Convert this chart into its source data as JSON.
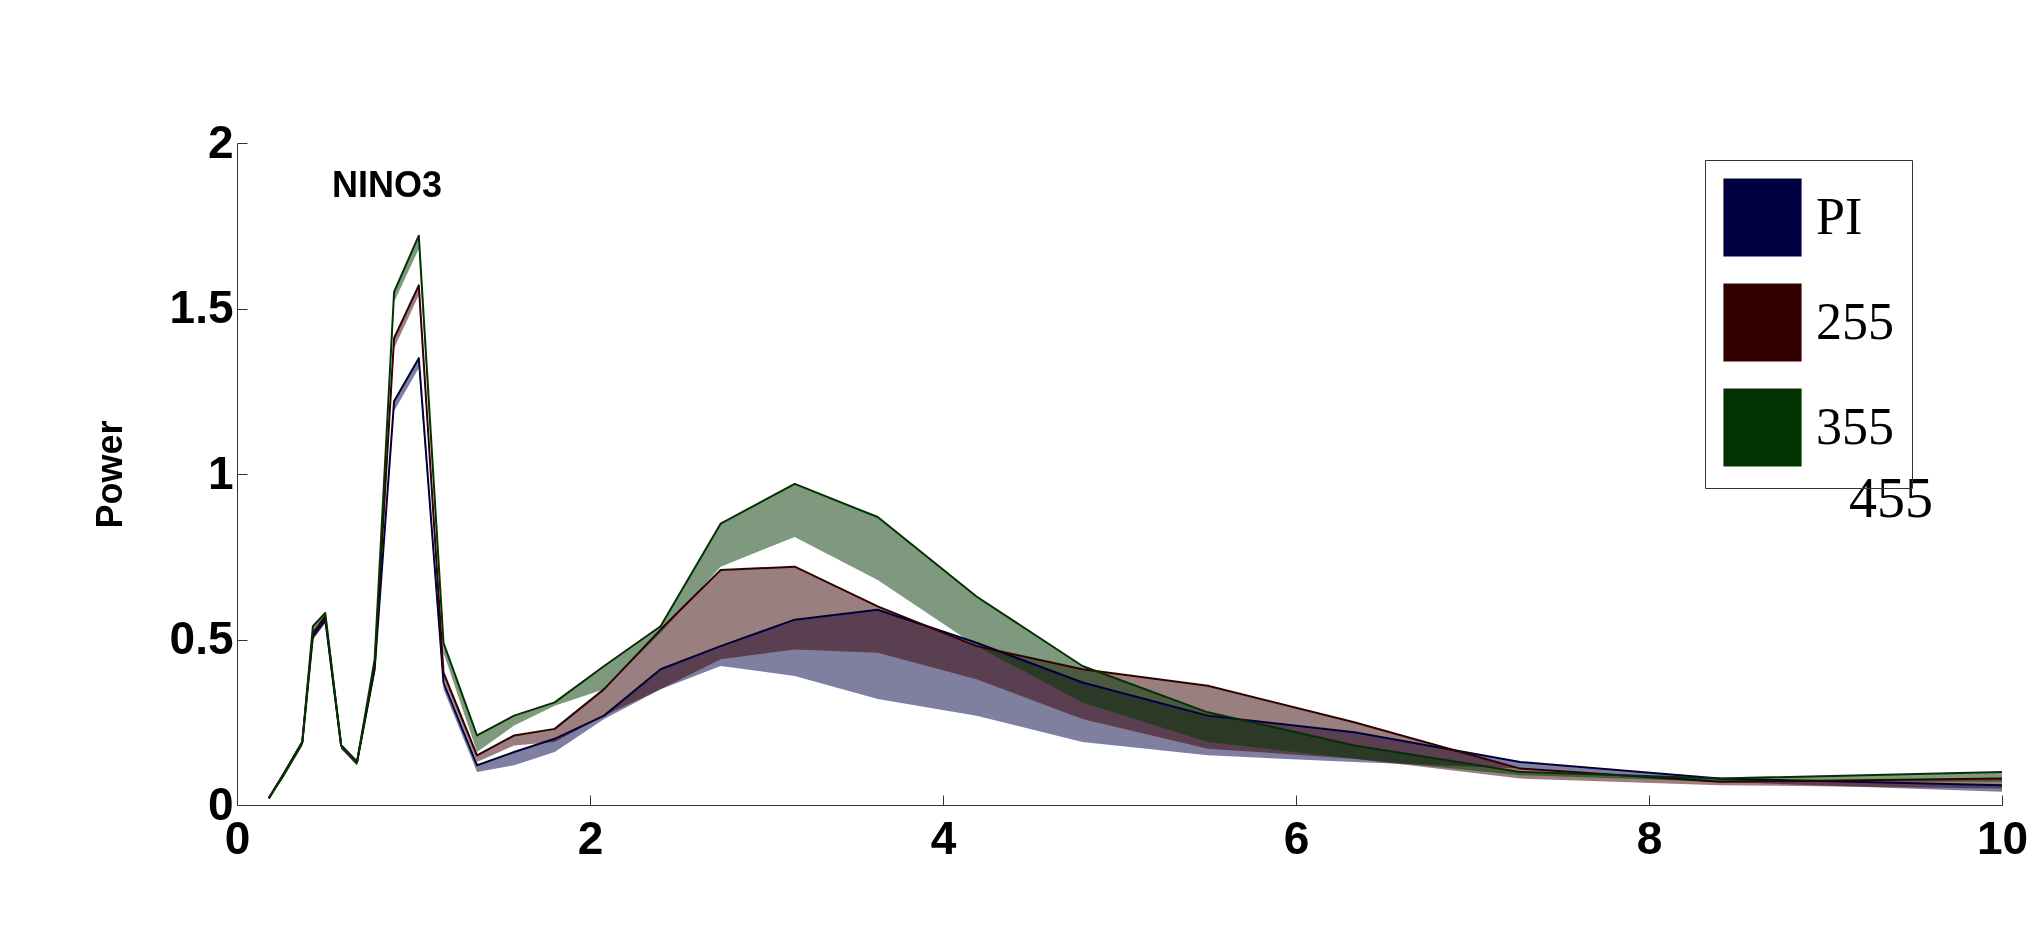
{
  "chart_data": {
    "type": "line",
    "title": "NINO3",
    "ylabel": "Power",
    "x": [
      0.18,
      0.26,
      0.37,
      0.43,
      0.5,
      0.59,
      0.68,
      0.78,
      0.89,
      1.03,
      1.17,
      1.36,
      1.57,
      1.8,
      2.08,
      2.4,
      2.74,
      3.16,
      3.63,
      4.19,
      4.79,
      5.5,
      6.33,
      7.27,
      8.4,
      10
    ],
    "series": [
      {
        "name": "PI",
        "color": "#000040",
        "values": [
          0.02,
          0.09,
          0.19,
          0.51,
          0.56,
          0.18,
          0.13,
          0.41,
          1.22,
          1.35,
          0.37,
          0.12,
          0.16,
          0.2,
          0.27,
          0.41,
          0.48,
          0.56,
          0.59,
          0.49,
          0.37,
          0.27,
          0.22,
          0.13,
          0.08,
          0.06
        ],
        "lower": [
          0.02,
          0.08,
          0.18,
          0.5,
          0.55,
          0.17,
          0.12,
          0.4,
          1.19,
          1.32,
          0.35,
          0.1,
          0.12,
          0.16,
          0.26,
          0.35,
          0.42,
          0.39,
          0.32,
          0.27,
          0.19,
          0.15,
          0.13,
          0.11,
          0.07,
          0.04
        ],
        "upper": [
          0.02,
          0.09,
          0.19,
          0.51,
          0.56,
          0.18,
          0.13,
          0.41,
          1.22,
          1.35,
          0.37,
          0.12,
          0.16,
          0.2,
          0.27,
          0.41,
          0.48,
          0.56,
          0.59,
          0.49,
          0.37,
          0.27,
          0.22,
          0.13,
          0.08,
          0.06
        ]
      },
      {
        "name": "255",
        "color": "#330000",
        "values": [
          0.02,
          0.09,
          0.19,
          0.52,
          0.57,
          0.18,
          0.13,
          0.42,
          1.41,
          1.57,
          0.4,
          0.15,
          0.21,
          0.23,
          0.35,
          0.53,
          0.71,
          0.72,
          0.6,
          0.48,
          0.41,
          0.36,
          0.25,
          0.11,
          0.07,
          0.08
        ],
        "lower": [
          0.02,
          0.08,
          0.18,
          0.5,
          0.55,
          0.17,
          0.12,
          0.4,
          1.38,
          1.54,
          0.38,
          0.13,
          0.18,
          0.19,
          0.27,
          0.35,
          0.44,
          0.47,
          0.46,
          0.38,
          0.26,
          0.17,
          0.14,
          0.08,
          0.06,
          0.05
        ],
        "upper": [
          0.02,
          0.09,
          0.19,
          0.52,
          0.57,
          0.18,
          0.13,
          0.42,
          1.41,
          1.57,
          0.4,
          0.15,
          0.21,
          0.23,
          0.35,
          0.53,
          0.71,
          0.72,
          0.6,
          0.48,
          0.41,
          0.36,
          0.25,
          0.11,
          0.07,
          0.08
        ]
      },
      {
        "name": "355",
        "color": "#003300",
        "values": [
          0.02,
          0.09,
          0.19,
          0.54,
          0.58,
          0.18,
          0.13,
          0.44,
          1.55,
          1.72,
          0.49,
          0.21,
          0.27,
          0.31,
          0.42,
          0.54,
          0.85,
          0.97,
          0.87,
          0.63,
          0.42,
          0.28,
          0.18,
          0.1,
          0.08,
          0.1
        ],
        "lower": [
          0.02,
          0.08,
          0.18,
          0.52,
          0.56,
          0.17,
          0.12,
          0.42,
          1.52,
          1.68,
          0.46,
          0.16,
          0.24,
          0.3,
          0.35,
          0.52,
          0.72,
          0.81,
          0.68,
          0.48,
          0.31,
          0.19,
          0.14,
          0.09,
          0.07,
          0.07
        ],
        "upper": [
          0.02,
          0.09,
          0.19,
          0.54,
          0.58,
          0.18,
          0.13,
          0.44,
          1.55,
          1.72,
          0.49,
          0.21,
          0.27,
          0.31,
          0.42,
          0.54,
          0.85,
          0.97,
          0.87,
          0.63,
          0.42,
          0.28,
          0.18,
          0.1,
          0.08,
          0.1
        ]
      }
    ],
    "xlim": [
      0,
      10
    ],
    "xticks": [
      0,
      2,
      4,
      6,
      8,
      10
    ],
    "ylim": [
      0,
      2
    ],
    "yticks": [
      0,
      0.5,
      1,
      1.5,
      2
    ],
    "grid": false,
    "legend": "top right",
    "marker": "none",
    "line_style": "solid",
    "annotations": [
      "455"
    ]
  }
}
